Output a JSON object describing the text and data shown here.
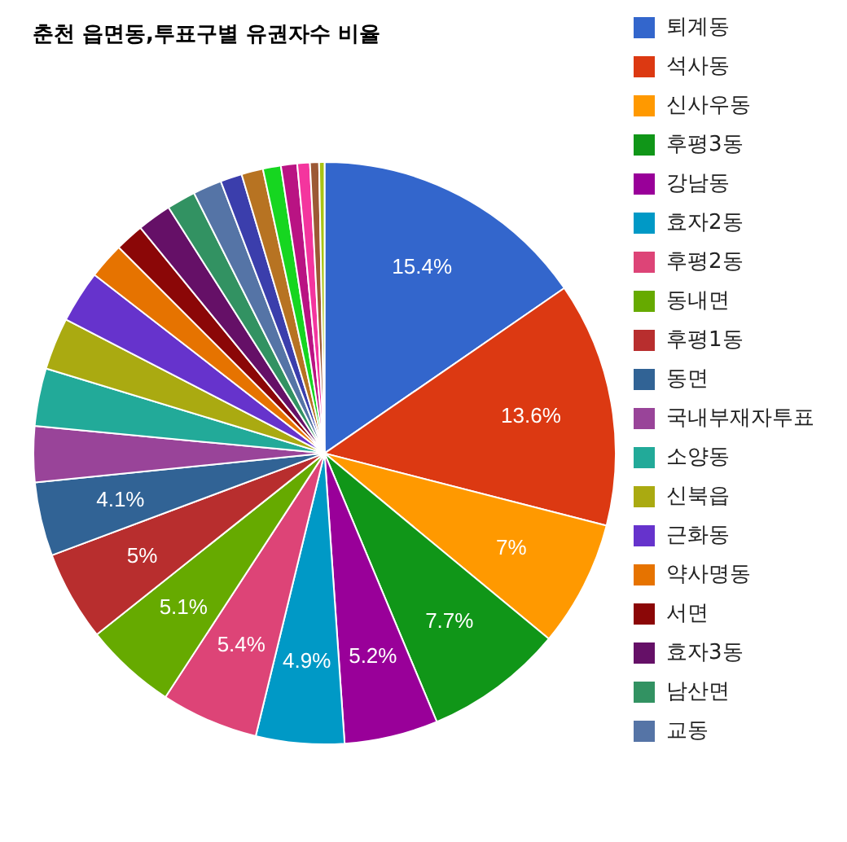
{
  "chart_data": {
    "type": "pie",
    "title": "춘천 읍면동,투표구별 유권자수 비율",
    "categories": [
      "퇴계동",
      "석사동",
      "신사우동",
      "후평3동",
      "강남동",
      "효자2동",
      "후평2동",
      "동내면",
      "후평1동",
      "동면",
      "국내부재자투표",
      "소양동",
      "신북읍",
      "근화동",
      "약사명동",
      "서면",
      "효자3동",
      "남산면",
      "교동",
      null,
      null,
      null,
      null,
      null,
      null,
      null
    ],
    "values": [
      15.4,
      13.6,
      7,
      7.7,
      5.2,
      4.9,
      5.4,
      5.1,
      5,
      4.1,
      3.1,
      3.2,
      2.9,
      2.9,
      2.0,
      1.6,
      1.9,
      1.6,
      1.6,
      1.2,
      1.2,
      1.0,
      0.9,
      0.7,
      0.5,
      0.3
    ],
    "value_labels": [
      "15.4%",
      "13.6%",
      "7%",
      "7.7%",
      "5.2%",
      "4.9%",
      "5.4%",
      "5.1%",
      "5%",
      "4.1%",
      null,
      null,
      null,
      null,
      null,
      null,
      null,
      null,
      null,
      null,
      null,
      null,
      null,
      null,
      null,
      null
    ],
    "colors": [
      "#3366cc",
      "#dc3912",
      "#ff9900",
      "#109618",
      "#990099",
      "#0099c6",
      "#dd4477",
      "#66aa00",
      "#b82e2e",
      "#316395",
      "#994499",
      "#22aa99",
      "#aaaa11",
      "#6633cc",
      "#e67300",
      "#8b0707",
      "#651067",
      "#329262",
      "#5574a6",
      "#3b3eac",
      "#b77322",
      "#16d620",
      "#b91383",
      "#f4359e",
      "#9c5935",
      "#a9c413"
    ],
    "legend": "right"
  }
}
